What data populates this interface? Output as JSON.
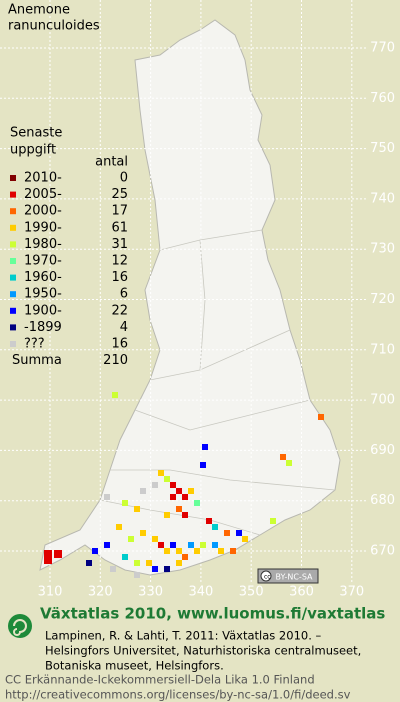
{
  "title": [
    "Anemone",
    "ranunculoides"
  ],
  "legend": {
    "heading": [
      "Senaste",
      "uppgift"
    ],
    "count_heading": "antal",
    "rows": [
      {
        "label": "2010-",
        "color": "#800000",
        "count": 0
      },
      {
        "label": "2005-",
        "color": "#e00000",
        "count": 25
      },
      {
        "label": "2000-",
        "color": "#ff6600",
        "count": 17
      },
      {
        "label": "1990-",
        "color": "#ffcc00",
        "count": 61
      },
      {
        "label": "1980-",
        "color": "#ccff33",
        "count": 31
      },
      {
        "label": "1970-",
        "color": "#66ff99",
        "count": 12
      },
      {
        "label": "1960-",
        "color": "#00cccc",
        "count": 16
      },
      {
        "label": "1950-",
        "color": "#0099ff",
        "count": 6
      },
      {
        "label": "1900-",
        "color": "#0000ff",
        "count": 22
      },
      {
        "label": "-1899",
        "color": "#000080",
        "count": 4
      },
      {
        "label": "???",
        "color": "#cccccc",
        "count": 16
      }
    ],
    "total_label": "Summa",
    "total": 210
  },
  "north_ticks": [
    770,
    760,
    750,
    740,
    730,
    720,
    710,
    700,
    690,
    680,
    670
  ],
  "east_ticks": [
    310,
    320,
    330,
    340,
    350,
    360,
    370
  ],
  "license_badge": "BY-NC-SA",
  "footer": {
    "heading": "Växtatlas 2010, www.luomus.fi/vaxtatlas",
    "citation": [
      "Lampinen, R. & Lahti, T. 2011: Växtatlas 2010. –",
      "Helsingfors Universitet, Naturhistoriska centralmuseet,",
      "Botaniska museet, Helsingfors."
    ],
    "license": [
      "CC Erkännande-Ickekommersiell-Dela Lika 1.0 Finland",
      "http://creativecommons.org/licenses/by-nc-sa/1.0/fi/deed.sv"
    ]
  }
}
